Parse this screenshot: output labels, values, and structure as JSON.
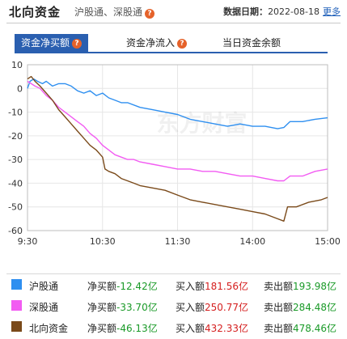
{
  "header": {
    "title": "北向资金",
    "subtitle": "沪股通、深股通",
    "date_label": "数据日期：",
    "date_value": "2022-08-18",
    "more_link": "更多"
  },
  "tabs": [
    {
      "label": "资金净买额",
      "active": true,
      "has_help": true
    },
    {
      "label": "资金净流入",
      "active": false,
      "has_help": true
    },
    {
      "label": "当日资金余额",
      "active": false,
      "has_help": false
    }
  ],
  "legend": [
    {
      "name": "沪股通",
      "color": "#2e8ff0",
      "net_label": "净买额",
      "net_value": "-12.42亿",
      "buy_label": "买入额",
      "buy_value": "181.56亿",
      "sell_label": "卖出额",
      "sell_value": "193.98亿"
    },
    {
      "name": "深股通",
      "color": "#f25bf2",
      "net_label": "净买额",
      "net_value": "-33.70亿",
      "buy_label": "买入额",
      "buy_value": "250.77亿",
      "sell_label": "卖出额",
      "sell_value": "284.48亿"
    },
    {
      "name": "北向资金",
      "color": "#7a4a1a",
      "net_label": "净买额",
      "net_value": "-46.13亿",
      "buy_label": "买入额",
      "buy_value": "432.33亿",
      "sell_label": "卖出额",
      "sell_value": "478.46亿"
    }
  ],
  "chart_data": {
    "type": "line",
    "watermark": "东方财富",
    "x_ticks": [
      "9:30",
      "10:30",
      "11:30",
      "14:00",
      "15:00"
    ],
    "y_ticks": [
      10,
      0,
      -10,
      -20,
      -30,
      -40,
      -50,
      -60
    ],
    "ylim": [
      -60,
      10
    ],
    "grid": true,
    "x_unit": "trading minute (0 = 9:30, 240 = 15:00)",
    "series": [
      {
        "name": "沪股通",
        "color": "#2e8ff0",
        "x": [
          0,
          2,
          5,
          8,
          12,
          15,
          20,
          25,
          30,
          35,
          40,
          45,
          50,
          55,
          60,
          65,
          70,
          75,
          80,
          90,
          100,
          110,
          120,
          130,
          140,
          150,
          160,
          170,
          180,
          190,
          200,
          205,
          210,
          220,
          230,
          240
        ],
        "y": [
          0,
          3,
          4,
          3,
          2,
          3,
          1,
          2,
          2,
          1,
          -1,
          -2,
          -1,
          -3,
          -2,
          -4,
          -5,
          -6,
          -6,
          -8,
          -9,
          -10,
          -11,
          -13,
          -14,
          -15,
          -16,
          -15,
          -16,
          -16,
          -17,
          -16.5,
          -14,
          -14,
          -13,
          -12.4
        ]
      },
      {
        "name": "深股通",
        "color": "#f25bf2",
        "x": [
          0,
          3,
          6,
          10,
          15,
          20,
          25,
          30,
          35,
          40,
          45,
          50,
          55,
          60,
          65,
          70,
          75,
          80,
          85,
          90,
          100,
          110,
          120,
          130,
          140,
          150,
          160,
          170,
          180,
          190,
          200,
          205,
          210,
          220,
          230,
          240
        ],
        "y": [
          3,
          2,
          1,
          0,
          -3,
          -5,
          -8,
          -10,
          -12,
          -14,
          -16,
          -19,
          -21,
          -24,
          -26,
          -28,
          -29,
          -30,
          -30,
          -31,
          -32,
          -33,
          -34,
          -34,
          -35,
          -35,
          -36,
          -37,
          -37,
          -38,
          -39,
          -39,
          -37,
          -37,
          -35,
          -34
        ]
      },
      {
        "name": "北向资金",
        "color": "#7a4a1a",
        "x": [
          0,
          3,
          6,
          10,
          15,
          20,
          25,
          30,
          35,
          40,
          45,
          50,
          55,
          60,
          62,
          65,
          70,
          75,
          80,
          85,
          90,
          100,
          110,
          120,
          130,
          140,
          150,
          160,
          170,
          180,
          190,
          200,
          205,
          208,
          215,
          225,
          235,
          240
        ],
        "y": [
          4,
          5,
          3,
          1,
          -2,
          -5,
          -9,
          -12,
          -15,
          -18,
          -21,
          -24,
          -26,
          -29,
          -34,
          -35,
          -36,
          -38,
          -39,
          -40,
          -41,
          -42,
          -43,
          -45,
          -47,
          -48,
          -49,
          -50,
          -51,
          -52,
          -53,
          -55,
          -56,
          -50,
          -50,
          -48,
          -47,
          -46
        ]
      }
    ]
  }
}
